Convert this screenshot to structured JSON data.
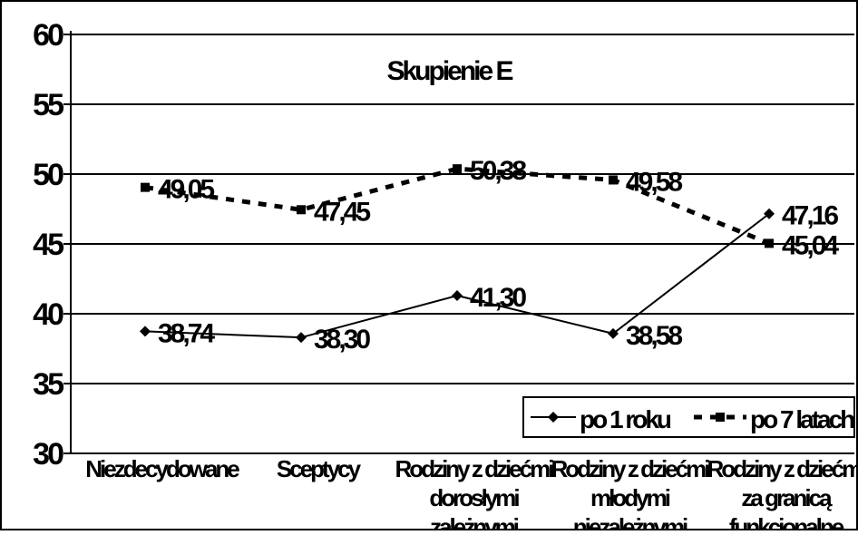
{
  "chart_data": {
    "type": "line",
    "title": "Skupienie E",
    "categories": [
      [
        "Niezdecydowane"
      ],
      [
        "Sceptycy"
      ],
      [
        "Rodziny z dziećmi",
        "dorosłymi",
        "zależnymi"
      ],
      [
        "Rodziny z dziećmi",
        "młodymi",
        "niezależnymi"
      ],
      [
        "Rodziny z dziećmi",
        "za granicą",
        "funkcjonalne"
      ]
    ],
    "series": [
      {
        "name": "po 1 roku",
        "values": [
          38.74,
          38.3,
          41.3,
          38.58,
          47.16
        ],
        "marker": "diamond",
        "dash": "solid"
      },
      {
        "name": "po 7 latach",
        "values": [
          49.05,
          47.45,
          50.38,
          49.58,
          45.04
        ],
        "marker": "square",
        "dash": "dashed"
      }
    ],
    "data_labels": [
      [
        "38,74",
        "38,30",
        "41,30",
        "38,58",
        "47,16"
      ],
      [
        "49,05",
        "47,45",
        "50,38",
        "49,58",
        "45,04"
      ]
    ],
    "ylim": [
      30,
      60
    ],
    "yticks": [
      "30",
      "35",
      "40",
      "45",
      "50",
      "55",
      "60"
    ],
    "grid": true,
    "legend_position": "bottom-right",
    "colors": {
      "line": "#000000",
      "background": "#ffffff"
    }
  }
}
